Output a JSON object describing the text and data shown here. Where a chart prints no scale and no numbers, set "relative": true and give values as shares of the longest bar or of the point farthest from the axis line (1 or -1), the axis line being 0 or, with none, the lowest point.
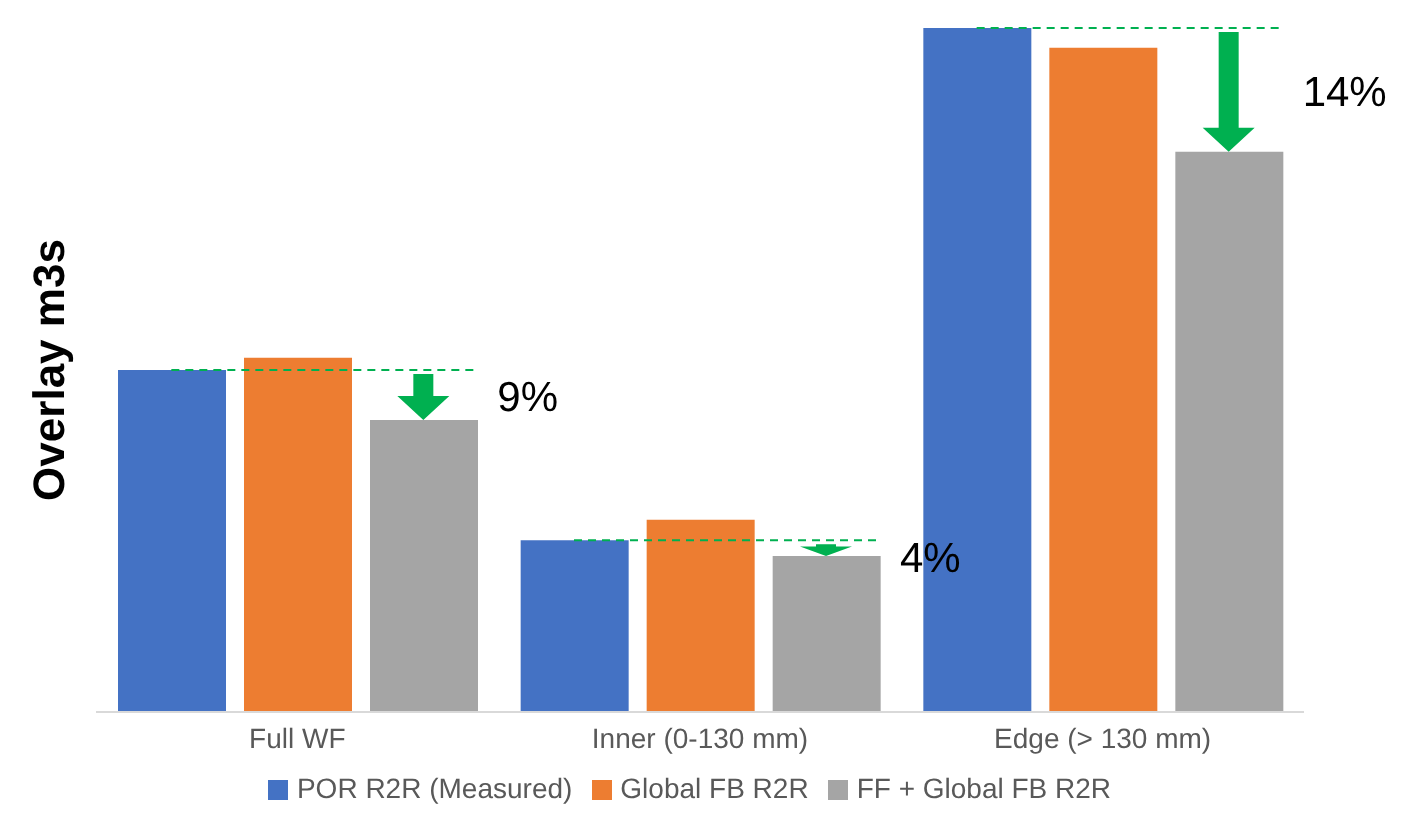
{
  "chart_data": {
    "type": "bar",
    "relative": true,
    "ylabel": "Overlay m3s",
    "categories": [
      "Full WF",
      "Inner (0-130 mm)",
      "Edge (> 130 mm)"
    ],
    "series": [
      {
        "name": "POR R2R (Measured)",
        "color": "#4472c4",
        "values": [
          0.5,
          0.251,
          1
        ]
      },
      {
        "name": "Global FB R2R",
        "color": "#ed7d31",
        "values": [
          0.518,
          0.281,
          0.971
        ]
      },
      {
        "name": "FF + Global FB R2R",
        "color": "#a5a5a5",
        "values": [
          0.427,
          0.228,
          0.819
        ]
      }
    ],
    "annotations": [
      "9%",
      "4%",
      "14%"
    ],
    "legend": "bottom",
    "grid": false
  }
}
